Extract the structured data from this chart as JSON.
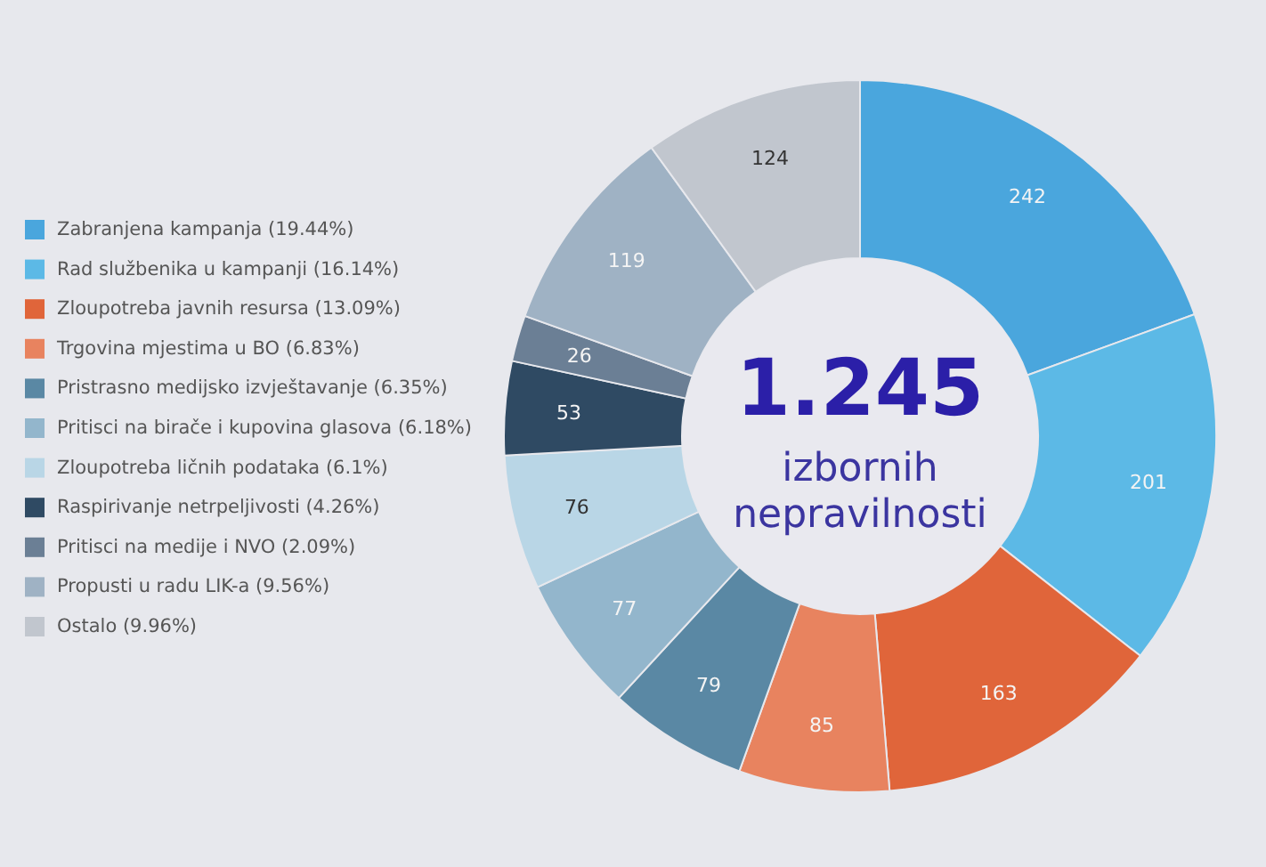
{
  "chart_data": {
    "type": "donut",
    "title": "1.245",
    "subtitle": "izbornih nepravilnosti",
    "categories": [
      "Zabranjena kampanja (19.44%)",
      "Rad službenika u kampanji (16.14%)",
      "Zloupotreba javnih resursa (13.09%)",
      "Trgovina mjestima u BO (6.83%)",
      "Pristrasno medijsko izvještavanje (6.35%)",
      "Pritisci na birače i kupovina glasova (6.18%)",
      "Zloupotreba ličnih podataka (6.1%)",
      "Raspirivanje netrpeljivosti (4.26%)",
      "Pritisci na medije i NVO (2.09%)",
      "Propusti u radu LIK-a (9.56%)",
      "Ostalo (9.96%)"
    ],
    "values": [
      242,
      201,
      163,
      85,
      79,
      77,
      76,
      53,
      26,
      119,
      124
    ],
    "colors": [
      "#4aa6dd",
      "#5cb9e6",
      "#e0653a",
      "#e8835f",
      "#5a88a4",
      "#93b6cc",
      "#b9d6e6",
      "#2f4a63",
      "#6b7f95",
      "#9fb2c4",
      "#c1c6ce"
    ],
    "data_labels": true,
    "legend": "left"
  }
}
